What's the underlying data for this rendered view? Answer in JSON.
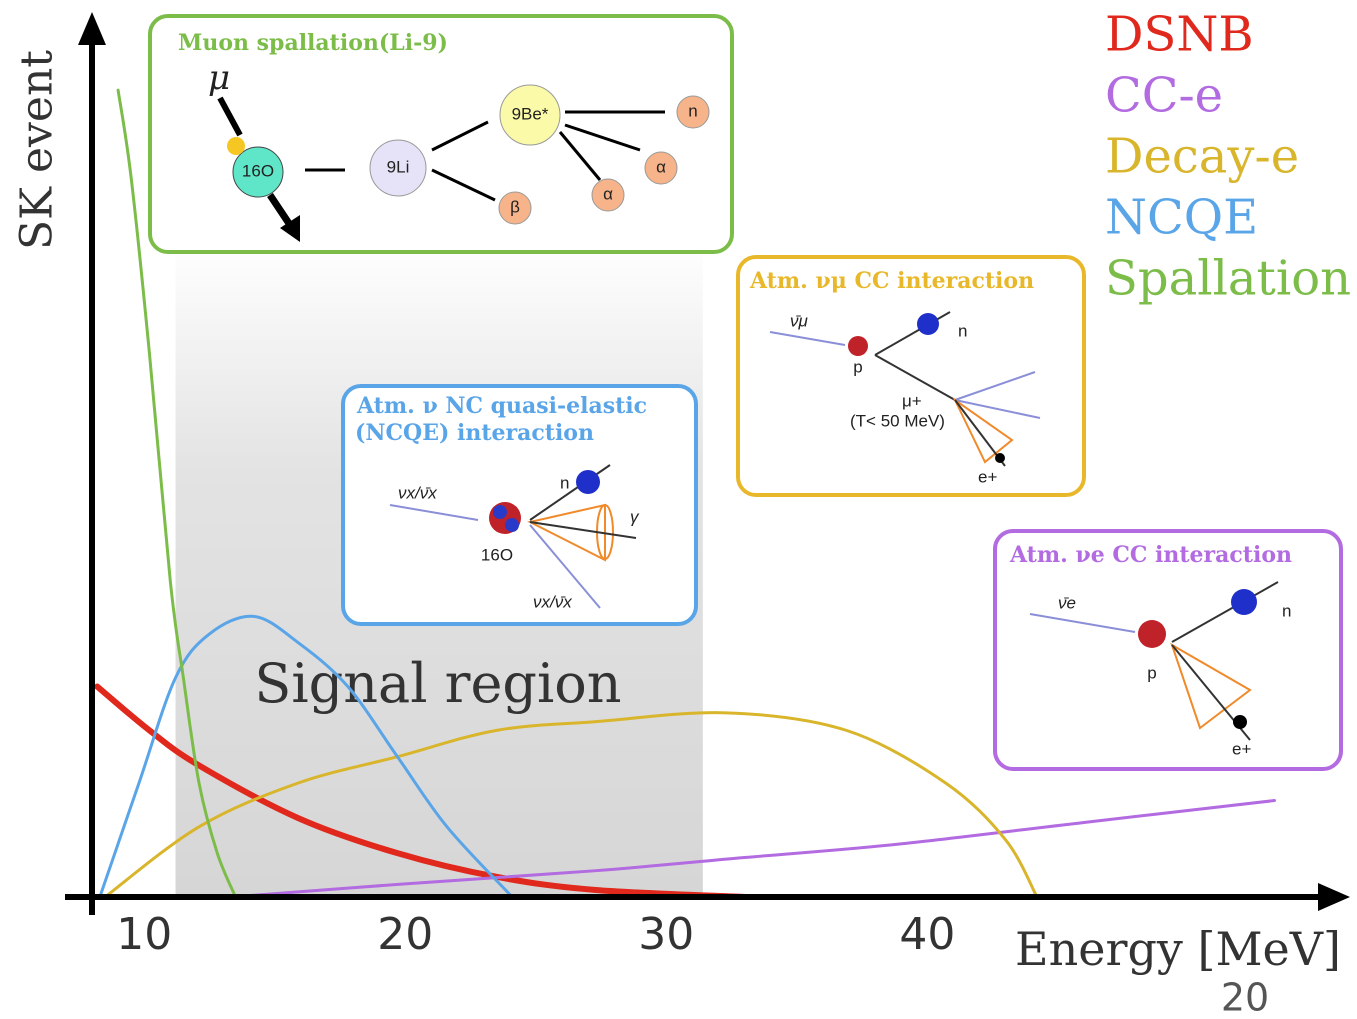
{
  "chart_data": {
    "type": "line",
    "y_label": "SK event",
    "x_label": "Energy [MeV]",
    "xlim": [
      8,
      56
    ],
    "ylim": [
      0,
      100
    ],
    "xticks": [
      10,
      20,
      30,
      40
    ],
    "grid": false,
    "legend": "top-right",
    "signal_region": {
      "label": "Signal region",
      "xlim": [
        11.2,
        31.4
      ],
      "color": "#e3e3e3"
    },
    "series": [
      {
        "name": "DSNB",
        "color": "#e0281c",
        "width": 6,
        "x": [
          8.2,
          10.2,
          12.1,
          15.9,
          19.7,
          23.5,
          27.3,
          33
        ],
        "values": [
          24,
          19,
          15,
          9,
          5,
          2.3,
          0.8,
          0
        ]
      },
      {
        "name": "CC-e",
        "color": "#b26be0",
        "width": 3,
        "x": [
          13.3,
          20,
          27.3,
          33,
          38.8,
          46,
          53.3
        ],
        "values": [
          0,
          1.5,
          3,
          4.5,
          6,
          8.5,
          11
        ]
      },
      {
        "name": "Decay-e",
        "color": "#d9b52c",
        "width": 3,
        "x": [
          8.5,
          12.1,
          15.9,
          19.7,
          23.5,
          27.3,
          32.3,
          36.9,
          40.7,
          43,
          44.2
        ],
        "values": [
          0,
          8,
          13,
          16,
          19,
          20,
          21,
          19,
          13,
          6.5,
          0
        ]
      },
      {
        "name": "NCQE",
        "color": "#5aa5e8",
        "width": 3,
        "x": [
          8.3,
          9.8,
          11.2,
          12.5,
          14.2,
          15.9,
          17.8,
          19.7,
          21.6,
          24.1
        ],
        "values": [
          0,
          13,
          25,
          30,
          32,
          29,
          24,
          16,
          8,
          0
        ]
      },
      {
        "name": "Spallation",
        "color": "#7cbd4a",
        "width": 3,
        "x": [
          9,
          9.5,
          10.2,
          11,
          11.5,
          12.1,
          12.8,
          13.5
        ],
        "values": [
          92,
          82,
          62,
          36,
          25,
          13,
          5,
          0
        ]
      }
    ],
    "insets": [
      {
        "title": "Muon spallation(Li-9)",
        "color": "#7cbd4a",
        "labels": [
          "μ",
          "16O",
          "9Li",
          "9Be*",
          "n",
          "α",
          "α",
          "β"
        ]
      },
      {
        "title": "Atm. ν NC quasi-elastic",
        "subtitle": "(NCQE) interaction",
        "color": "#5aa5e8",
        "labels": [
          "νx/ν̄x",
          "n",
          "γ",
          "16O",
          "νx/ν̄x"
        ]
      },
      {
        "title": "Atm. νμ CC interaction",
        "color": "#e8b82a",
        "labels": [
          "ν̄μ",
          "p",
          "n",
          "μ+",
          "(T< 50 MeV)",
          "e+"
        ]
      },
      {
        "title": "Atm. νe CC interaction",
        "color": "#b26be0",
        "labels": [
          "ν̄e",
          "p",
          "n",
          "e+"
        ]
      }
    ],
    "page_number": "20"
  }
}
